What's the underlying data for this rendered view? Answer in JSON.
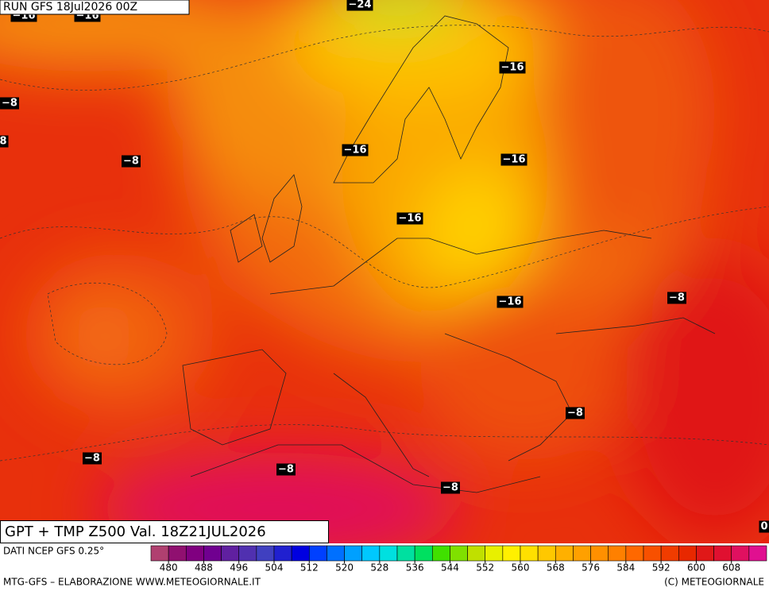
{
  "header": {
    "run": "RUN GFS 18Jul2026 00Z",
    "title": "GPT + TMP Z500 Val. 18Z21JUL2026"
  },
  "map": {
    "contour_labels": [
      "−16",
      "−16",
      "−24",
      "−16",
      "−8",
      "8",
      "−8",
      "−16",
      "−16",
      "−16",
      "−16",
      "−8",
      "−8",
      "−8",
      "−8",
      "−8",
      "0"
    ]
  },
  "colorbar": {
    "source": "DATI NCEP GFS 0.25°",
    "lim": [
      476,
      616
    ],
    "ticks": [
      480,
      488,
      496,
      504,
      512,
      520,
      528,
      536,
      544,
      552,
      560,
      568,
      576,
      584,
      592,
      600,
      608
    ],
    "colors": [
      "#b04070",
      "#901070",
      "#800080",
      "#700090",
      "#6020a0",
      "#5030b0",
      "#4040c0",
      "#2020d0",
      "#0000e0",
      "#0040ff",
      "#0070ff",
      "#00a0ff",
      "#00c8ff",
      "#00e0e0",
      "#00e0a0",
      "#00e060",
      "#40e000",
      "#80e000",
      "#c0e000",
      "#e8f000",
      "#fff000",
      "#ffe000",
      "#ffc800",
      "#ffb000",
      "#ffa000",
      "#ff9000",
      "#ff8000",
      "#ff6800",
      "#f85000",
      "#f03c00",
      "#e82800",
      "#e01818",
      "#e01030",
      "#e01060",
      "#e01090"
    ]
  },
  "footer": {
    "left": "MTG-GFS – ELABORAZIONE WWW.METEOGIORNALE.IT",
    "right": "(C) METEOGIORNALE"
  }
}
